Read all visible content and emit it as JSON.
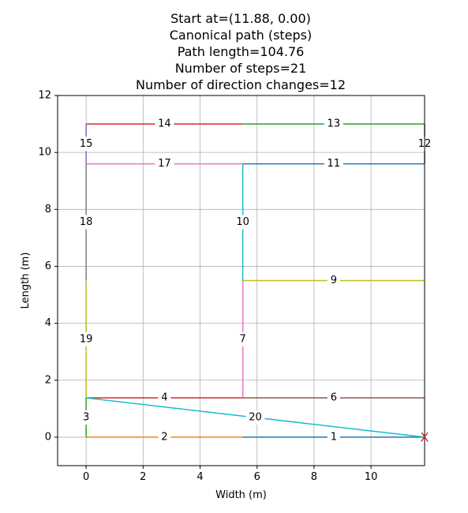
{
  "chart_data": {
    "type": "line",
    "title_lines": [
      "Start at=(11.88, 0.00)",
      "Canonical path (steps)",
      "Path length=104.76",
      "Number of steps=21",
      "Number of direction changes=12"
    ],
    "xlabel": "Width (m)",
    "ylabel": "Length (m)",
    "xlim": [
      -1,
      11.88
    ],
    "ylim": [
      -1,
      12
    ],
    "xticks": [
      0,
      2,
      4,
      6,
      8,
      10
    ],
    "yticks": [
      0,
      2,
      4,
      6,
      8,
      10,
      12
    ],
    "grid": true,
    "start_marker": {
      "x": 11.88,
      "y": 0,
      "label": "X",
      "color": "#d62728"
    },
    "segments": [
      {
        "label": "1",
        "from": [
          11.88,
          0
        ],
        "to": [
          5.5,
          0
        ],
        "color": "#1f77b4"
      },
      {
        "label": "2",
        "from": [
          5.5,
          0
        ],
        "to": [
          0,
          0
        ],
        "color": "#ff7f0e"
      },
      {
        "label": "3",
        "from": [
          0,
          0
        ],
        "to": [
          0,
          1.38
        ],
        "color": "#2ca02c"
      },
      {
        "label": "4",
        "from": [
          0,
          1.38
        ],
        "to": [
          5.5,
          1.38
        ],
        "color": "#d62728"
      },
      {
        "label": "6",
        "from": [
          5.5,
          1.38
        ],
        "to": [
          11.88,
          1.38
        ],
        "color": "#8c564b"
      },
      {
        "label": "7",
        "from": [
          5.5,
          1.38
        ],
        "to": [
          5.5,
          5.5
        ],
        "color": "#e377c2"
      },
      {
        "label": "9",
        "from": [
          5.5,
          5.5
        ],
        "to": [
          11.88,
          5.5
        ],
        "color": "#bcbd22"
      },
      {
        "label": "10",
        "from": [
          5.5,
          5.5
        ],
        "to": [
          5.5,
          9.6
        ],
        "color": "#17becf"
      },
      {
        "label": "11",
        "from": [
          5.5,
          9.6
        ],
        "to": [
          11.88,
          9.6
        ],
        "color": "#1f77b4"
      },
      {
        "label": "12",
        "from": [
          11.88,
          9.6
        ],
        "to": [
          11.88,
          11
        ],
        "color": "#8c564b"
      },
      {
        "label": "13",
        "from": [
          11.88,
          11
        ],
        "to": [
          5.5,
          11
        ],
        "color": "#2ca02c"
      },
      {
        "label": "14",
        "from": [
          5.5,
          11
        ],
        "to": [
          0,
          11
        ],
        "color": "#d62728"
      },
      {
        "label": "15",
        "from": [
          0,
          11
        ],
        "to": [
          0,
          9.6
        ],
        "color": "#9467bd"
      },
      {
        "label": "17",
        "from": [
          0,
          9.6
        ],
        "to": [
          5.5,
          9.6
        ],
        "color": "#e377c2"
      },
      {
        "label": "18",
        "from": [
          0,
          9.6
        ],
        "to": [
          0,
          5.5
        ],
        "color": "#7f7f7f"
      },
      {
        "label": "19",
        "from": [
          0,
          5.5
        ],
        "to": [
          0,
          1.38
        ],
        "color": "#bcbd22"
      },
      {
        "label": "20",
        "from": [
          0,
          1.38
        ],
        "to": [
          11.88,
          0
        ],
        "color": "#17becf"
      }
    ]
  }
}
